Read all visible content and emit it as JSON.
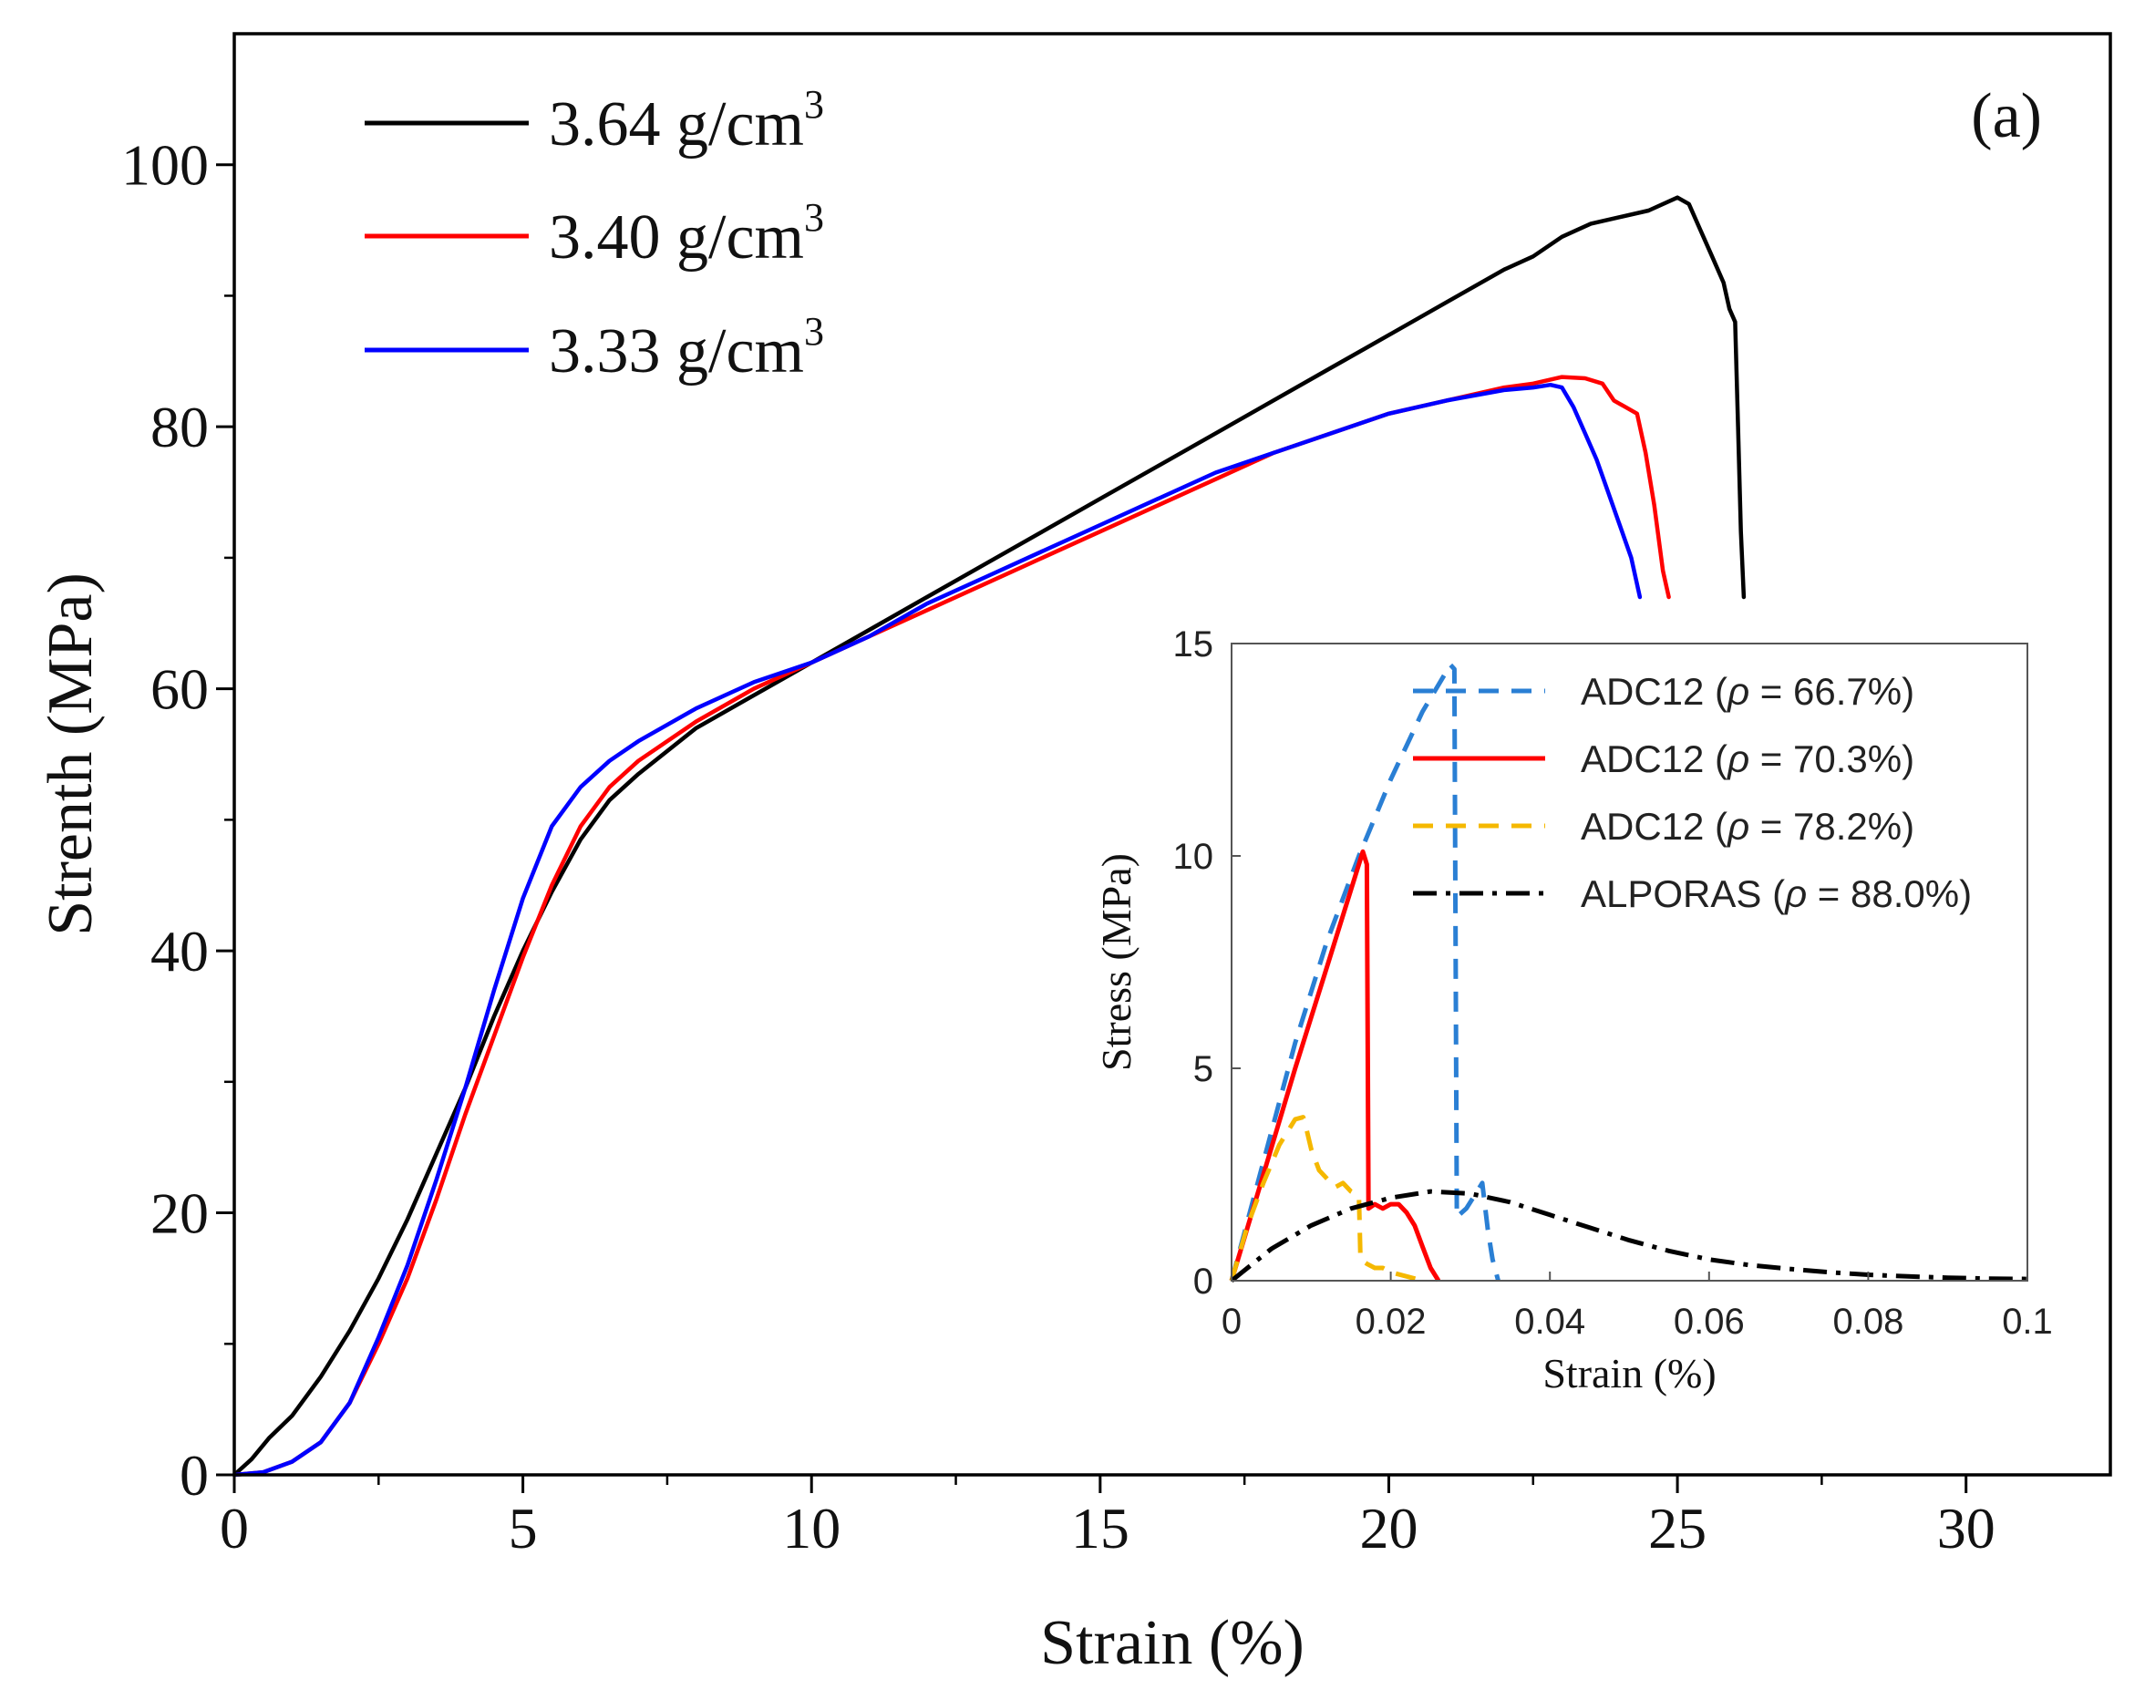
{
  "chart_data": [
    {
      "type": "line",
      "panel_label": "(a)",
      "xlabel": "Strain  (%)",
      "ylabel": "Strenth (MPa)",
      "xlim": [
        0,
        32.5
      ],
      "ylim": [
        0,
        110
      ],
      "x_ticks": [
        0,
        5,
        10,
        15,
        20,
        25,
        30
      ],
      "y_ticks": [
        0,
        20,
        40,
        60,
        80,
        100
      ],
      "x_tick_labels": [
        "0",
        "5",
        "10",
        "15",
        "20",
        "25",
        "30"
      ],
      "y_tick_labels": [
        "0",
        "20",
        "40",
        "60",
        "80",
        "100"
      ],
      "legend_position": "top-left",
      "series": [
        {
          "name": "3.64 g/cm",
          "name_sup": "3",
          "color": "#000000",
          "x": [
            0,
            0.3,
            0.6,
            1.0,
            1.5,
            2.0,
            2.5,
            3.0,
            3.5,
            4.0,
            4.5,
            5.0,
            5.5,
            6.0,
            6.5,
            7.0,
            8.0,
            9.0,
            10.0,
            11.0,
            12.0,
            13.0,
            14.0,
            15.0,
            16.0,
            17.0,
            18.0,
            19.0,
            20.0,
            21.0,
            22.0,
            22.5,
            23.0,
            23.5,
            24.0,
            24.5,
            25.0,
            25.2,
            25.4,
            25.6,
            25.8,
            25.9,
            26.0,
            26.05,
            26.1,
            26.15
          ],
          "y": [
            0,
            1.2,
            2.8,
            4.5,
            7.5,
            11.0,
            15.0,
            19.5,
            24.5,
            29.5,
            35.0,
            40.0,
            44.5,
            48.5,
            51.5,
            53.5,
            57.0,
            59.5,
            62.0,
            64.5,
            67.0,
            69.5,
            72.0,
            74.5,
            77.0,
            79.5,
            82.0,
            84.5,
            87.0,
            89.5,
            92.0,
            93.0,
            94.5,
            95.5,
            96.0,
            96.5,
            97.5,
            97.0,
            95.0,
            93.0,
            91.0,
            89.0,
            88.0,
            80.0,
            72.0,
            67.0
          ]
        },
        {
          "name": "3.40 g/cm",
          "name_sup": "3",
          "color": "#ff0000",
          "x": [
            0,
            0.5,
            1.0,
            1.5,
            2.0,
            2.5,
            3.0,
            3.5,
            4.0,
            4.5,
            5.0,
            5.5,
            6.0,
            6.5,
            7.0,
            8.0,
            9.0,
            10.0,
            11.0,
            12.0,
            13.0,
            14.0,
            15.0,
            16.0,
            17.0,
            18.0,
            19.0,
            20.0,
            21.0,
            22.0,
            22.5,
            23.0,
            23.4,
            23.7,
            23.9,
            24.1,
            24.3,
            24.45,
            24.6,
            24.75,
            24.85
          ],
          "y": [
            0,
            0.2,
            1.0,
            2.5,
            5.5,
            10.0,
            15.0,
            21.0,
            27.5,
            33.5,
            39.5,
            45.0,
            49.5,
            52.5,
            54.5,
            57.5,
            60.0,
            62.0,
            64.0,
            66.0,
            68.0,
            70.0,
            72.0,
            74.0,
            76.0,
            78.0,
            79.5,
            81.0,
            82.0,
            83.0,
            83.3,
            83.8,
            83.7,
            83.3,
            82.0,
            81.5,
            81.0,
            78.0,
            74.0,
            69.0,
            67.0
          ]
        },
        {
          "name": "3.33 g/cm",
          "name_sup": "3",
          "color": "#0000ff",
          "x": [
            0,
            0.5,
            1.0,
            1.5,
            2.0,
            2.5,
            3.0,
            3.5,
            4.0,
            4.5,
            5.0,
            5.5,
            6.0,
            6.5,
            7.0,
            8.0,
            9.0,
            10.0,
            11.0,
            12.0,
            13.0,
            14.0,
            15.0,
            16.0,
            17.0,
            18.0,
            19.0,
            20.0,
            21.0,
            22.0,
            22.5,
            22.8,
            23.0,
            23.2,
            23.4,
            23.6,
            23.8,
            24.0,
            24.2,
            24.35
          ],
          "y": [
            0,
            0.2,
            1.0,
            2.5,
            5.5,
            10.5,
            16.0,
            22.5,
            29.5,
            37.0,
            44.0,
            49.5,
            52.5,
            54.5,
            56.0,
            58.5,
            60.5,
            62.0,
            64.0,
            66.5,
            68.5,
            70.5,
            72.5,
            74.5,
            76.5,
            78.0,
            79.5,
            81.0,
            82.0,
            82.8,
            83.0,
            83.2,
            83.0,
            81.5,
            79.5,
            77.5,
            75.0,
            72.5,
            70.0,
            67.0
          ]
        }
      ]
    },
    {
      "type": "line",
      "position": "inset, bottom-right",
      "xlabel": "Strain  (%)",
      "ylabel": "Stress  (MPa)",
      "xlim": [
        0,
        0.1
      ],
      "ylim": [
        0,
        15
      ],
      "x_ticks": [
        0,
        0.02,
        0.04,
        0.06,
        0.08,
        0.1
      ],
      "y_ticks": [
        0,
        5,
        10,
        15
      ],
      "x_tick_labels": [
        "0",
        "0.02",
        "0.04",
        "0.06",
        "0.08",
        "0.1"
      ],
      "y_tick_labels": [
        "0",
        "5",
        "10",
        "15"
      ],
      "legend_position": "top-right",
      "series": [
        {
          "name": "ADC12 (ρ = 66.7%)",
          "name_prefix": "ADC12 (",
          "name_symbol": "ρ",
          "name_suffix": " = 66.7%)",
          "color": "#2a7fd4",
          "style": "dashed",
          "x": [
            0,
            0.004,
            0.008,
            0.012,
            0.016,
            0.02,
            0.024,
            0.0275,
            0.028,
            0.0283,
            0.0295,
            0.0305,
            0.0315,
            0.0322,
            0.0328,
            0.0335
          ],
          "y": [
            0,
            2.8,
            5.6,
            8.0,
            10.0,
            11.8,
            13.4,
            14.5,
            14.4,
            1.5,
            1.7,
            2.0,
            2.3,
            1.2,
            0.5,
            0
          ]
        },
        {
          "name": "ADC12 (ρ = 70.3%)",
          "name_prefix": "ADC12 (",
          "name_symbol": "ρ",
          "name_suffix": " = 70.3%)",
          "color": "#ff0000",
          "style": "solid",
          "x": [
            0,
            0.004,
            0.008,
            0.012,
            0.0165,
            0.017,
            0.0172,
            0.018,
            0.019,
            0.02,
            0.021,
            0.022,
            0.023,
            0.024,
            0.025,
            0.026
          ],
          "y": [
            0,
            2.5,
            5.0,
            7.4,
            10.1,
            9.8,
            1.7,
            1.8,
            1.7,
            1.8,
            1.8,
            1.6,
            1.3,
            0.8,
            0.3,
            0
          ]
        },
        {
          "name": "ADC12 (ρ = 78.2%)",
          "name_prefix": "ADC12 (",
          "name_symbol": "ρ",
          "name_suffix": " = 78.2%)",
          "color": "#f5b800",
          "style": "dashed",
          "x": [
            0,
            0.002,
            0.004,
            0.006,
            0.008,
            0.009,
            0.0095,
            0.01,
            0.011,
            0.012,
            0.013,
            0.014,
            0.015,
            0.016,
            0.0162,
            0.017,
            0.018,
            0.019,
            0.02,
            0.022,
            0.024
          ],
          "y": [
            0,
            1.3,
            2.3,
            3.2,
            3.8,
            3.85,
            3.5,
            3.1,
            2.6,
            2.4,
            2.2,
            2.3,
            2.1,
            2.0,
            0.5,
            0.4,
            0.3,
            0.3,
            0.2,
            0.1,
            0
          ]
        },
        {
          "name": "ALPORAS (ρ = 88.0%)",
          "name_prefix": "ALPORAS (",
          "name_symbol": "ρ",
          "name_suffix": " = 88.0%)",
          "color": "#000000",
          "style": "dashdot",
          "x": [
            0,
            0.005,
            0.01,
            0.015,
            0.02,
            0.025,
            0.03,
            0.035,
            0.04,
            0.045,
            0.05,
            0.055,
            0.06,
            0.065,
            0.07,
            0.075,
            0.08,
            0.085,
            0.09,
            0.095,
            0.1
          ],
          "y": [
            0,
            0.75,
            1.3,
            1.7,
            1.95,
            2.1,
            2.05,
            1.85,
            1.55,
            1.25,
            0.95,
            0.7,
            0.5,
            0.37,
            0.28,
            0.2,
            0.14,
            0.1,
            0.07,
            0.05,
            0.04
          ]
        }
      ]
    }
  ]
}
